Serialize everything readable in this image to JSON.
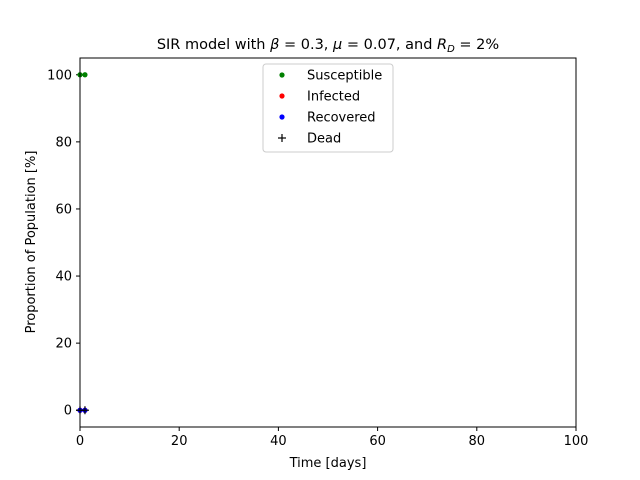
{
  "chart_data": {
    "type": "scatter",
    "title": {
      "prefix": "SIR model with ",
      "beta_symbol": "β",
      "beta_value": " = 0.3, ",
      "mu_symbol": "μ",
      "mu_value": " = 0.07, and ",
      "r_symbol": "R",
      "r_subscript": "D",
      "r_value": " = 2%"
    },
    "xlabel": "Time [days]",
    "ylabel": "Proportion of Population [%]",
    "xlim": [
      0,
      100
    ],
    "ylim": [
      -5,
      105
    ],
    "x_ticks": [
      0,
      20,
      40,
      60,
      80,
      100
    ],
    "y_ticks": [
      0,
      20,
      40,
      60,
      80,
      100
    ],
    "x_tick_labels": [
      "0",
      "20",
      "40",
      "60",
      "80",
      "100"
    ],
    "y_tick_labels": [
      "0",
      "20",
      "40",
      "60",
      "80",
      "100"
    ],
    "grid": false,
    "legend_position": "upper center",
    "series": [
      {
        "name": "Susceptible",
        "color": "#008000",
        "marker": "dot",
        "x": [
          0,
          1
        ],
        "y": [
          100,
          100
        ]
      },
      {
        "name": "Infected",
        "color": "#ff0000",
        "marker": "dot",
        "x": [
          0,
          1
        ],
        "y": [
          0,
          0
        ]
      },
      {
        "name": "Recovered",
        "color": "#0000ff",
        "marker": "dot",
        "x": [
          0,
          1
        ],
        "y": [
          0,
          0
        ]
      },
      {
        "name": "Dead",
        "color": "#000000",
        "marker": "plus",
        "x": [
          0,
          1
        ],
        "y": [
          0,
          0
        ]
      }
    ]
  }
}
